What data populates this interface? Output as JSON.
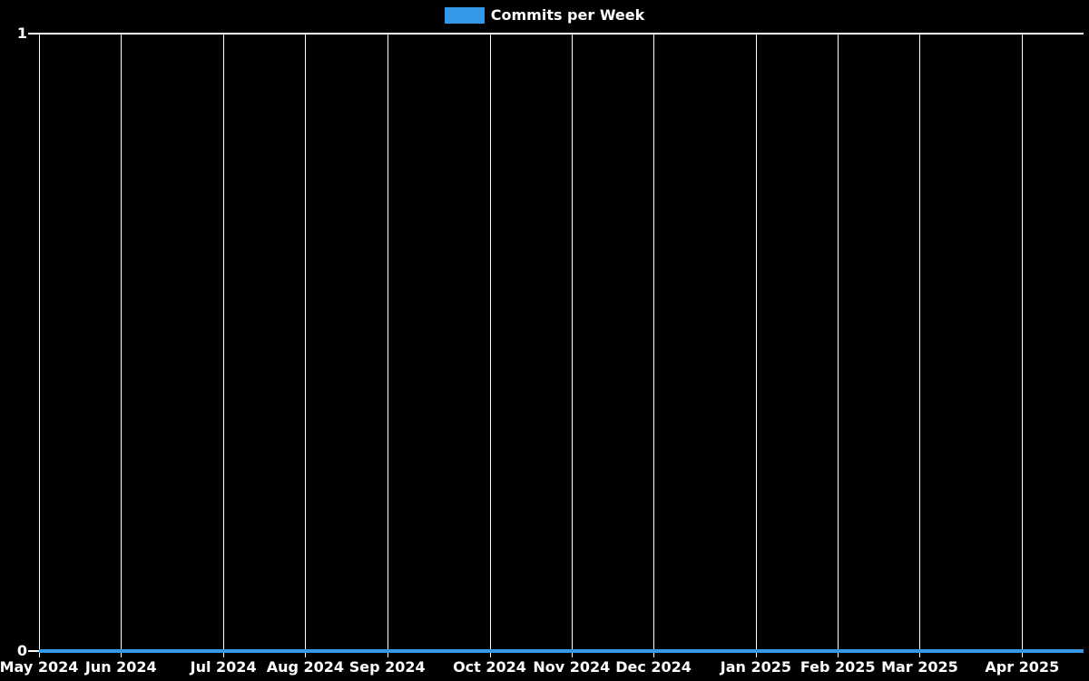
{
  "chart_data": {
    "type": "bar",
    "title": "",
    "legend": {
      "label": "Commits per Week",
      "color": "#3499e8",
      "position": "top-center"
    },
    "background_color": "#000000",
    "grid_color": "#ffffff",
    "text_color": "#ffffff",
    "grid": true,
    "x_axis": {
      "unit": "week",
      "total_weeks": 51,
      "tick_labels": [
        "May 2024",
        "Jun 2024",
        "Jul 2024",
        "Aug 2024",
        "Sep 2024",
        "Oct 2024",
        "Nov 2024",
        "Dec 2024",
        "Jan 2025",
        "Feb 2025",
        "Mar 2025",
        "Apr 2025"
      ],
      "tick_week_indices": [
        0,
        4,
        9,
        13,
        17,
        22,
        26,
        30,
        35,
        39,
        43,
        48
      ]
    },
    "y_axis": {
      "tick_labels": [
        "0",
        "1"
      ],
      "ylim": [
        0,
        1
      ]
    },
    "values": [
      0,
      0,
      0,
      0,
      0,
      0,
      0,
      0,
      0,
      0,
      0,
      0,
      0,
      0,
      0,
      0,
      0,
      0,
      0,
      0,
      0,
      0,
      0,
      0,
      0,
      0,
      0,
      0,
      0,
      0,
      0,
      0,
      0,
      0,
      0,
      0,
      0,
      0,
      0,
      0,
      0,
      0,
      0,
      0,
      0,
      0,
      0,
      0,
      0,
      0,
      0
    ]
  }
}
